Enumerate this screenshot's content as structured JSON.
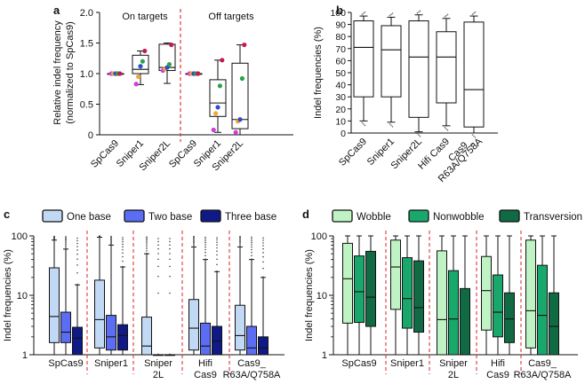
{
  "chart_data": [
    {
      "panel": "a",
      "type": "box",
      "ylabel": "Relative indel frequency",
      "ylabel2": "(normalized to SpCas9)",
      "ylim": [
        0,
        2.0
      ],
      "yticks": [
        "0",
        "0.5",
        "1.0",
        "1.5",
        "2.0"
      ],
      "group_labels": [
        "On targets",
        "Off targets"
      ],
      "categories": [
        "SpCas9",
        "Sniper1",
        "Sniper2L",
        "SpCas9",
        "Sniper1",
        "Sniper2L"
      ],
      "boxes": [
        {
          "min": 1.0,
          "q1": 1.0,
          "median": 1.0,
          "q3": 1.0,
          "max": 1.0
        },
        {
          "min": 0.82,
          "q1": 1.0,
          "median": 1.07,
          "q3": 1.3,
          "max": 1.37
        },
        {
          "min": 0.84,
          "q1": 1.05,
          "median": 1.1,
          "q3": 1.48,
          "max": 1.5
        },
        {
          "min": 1.0,
          "q1": 1.0,
          "median": 1.0,
          "q3": 1.0,
          "max": 1.0
        },
        {
          "min": 0.04,
          "q1": 0.3,
          "median": 0.52,
          "q3": 0.9,
          "max": 1.22
        },
        {
          "min": 0.0,
          "q1": 0.1,
          "median": 0.25,
          "q3": 1.17,
          "max": 1.47
        }
      ],
      "points": [
        [
          1.0,
          1.0,
          1.0,
          1.0,
          1.0
        ],
        [
          0.83,
          0.95,
          1.12,
          1.2,
          1.37
        ],
        [
          1.05,
          1.08,
          1.1,
          1.15,
          1.47
        ],
        [
          1.0,
          1.0,
          1.0,
          1.0,
          1.0
        ],
        [
          0.08,
          0.35,
          0.45,
          0.8,
          1.22
        ],
        [
          0.04,
          0.22,
          0.25,
          0.92,
          1.47
        ]
      ],
      "point_colors": [
        "#d13fd6",
        "#f6a53a",
        "#2b4ec9",
        "#2ca24a",
        "#c21b52"
      ]
    },
    {
      "panel": "b",
      "type": "box",
      "ylabel": "Indel frequencies (%)",
      "ylim": [
        0,
        100
      ],
      "yticks": [
        "0",
        "10",
        "20",
        "30",
        "40",
        "50",
        "60",
        "70",
        "80",
        "90",
        "100"
      ],
      "categories": [
        "SpCas9",
        "Sniper1",
        "Sniper2L",
        "Hifi Cas9",
        "Cas9_",
        "R63A/Q758A"
      ],
      "boxes": [
        {
          "min": 10,
          "q1": 30,
          "median": 71,
          "q3": 93,
          "max": 97
        },
        {
          "min": 9,
          "q1": 30,
          "median": 69,
          "q3": 89,
          "max": 96
        },
        {
          "min": 1,
          "q1": 13,
          "median": 63,
          "q3": 93,
          "max": 98
        },
        {
          "min": 6,
          "q1": 25,
          "median": 63,
          "q3": 84,
          "max": 95
        },
        {
          "min": 0,
          "q1": 5,
          "median": 36,
          "q3": 92,
          "max": 97
        }
      ]
    },
    {
      "panel": "c",
      "type": "box",
      "yscale": "log",
      "ylabel": "Indel frequencies (%)",
      "ylim": [
        1,
        100
      ],
      "yticks": [
        "1",
        "10",
        "100"
      ],
      "legend": [
        "One base",
        "Two base",
        "Three base"
      ],
      "colors": [
        "#c2d9f5",
        "#5b6df2",
        "#101a86"
      ],
      "categories": [
        "SpCas9",
        "Sniper1",
        "Sniper",
        "2L",
        "Hifi",
        "Cas9",
        "Cas9_",
        "R63A/Q758A"
      ],
      "boxes": [
        [
          {
            "min": 1,
            "q1": 1.6,
            "median": 4.4,
            "q3": 29,
            "max": 85
          },
          {
            "min": 1,
            "q1": 1.6,
            "median": 2.4,
            "q3": 5.2,
            "max": 60
          },
          {
            "min": 1,
            "q1": 1.0,
            "median": 1.9,
            "q3": 2.9,
            "max": 15
          }
        ],
        [
          {
            "min": 1,
            "q1": 1.3,
            "median": 3.9,
            "q3": 18,
            "max": 95
          },
          {
            "min": 1,
            "q1": 1.2,
            "median": 2.0,
            "q3": 4.6,
            "max": 70
          },
          {
            "min": 1,
            "q1": 1.2,
            "median": 2.1,
            "q3": 3.2,
            "max": 30
          }
        ],
        [
          {
            "min": 1,
            "q1": 1.0,
            "median": 1.4,
            "q3": 4.3,
            "max": 50
          },
          {
            "min": 1,
            "q1": 1.0,
            "median": 1.0,
            "q3": 1.0,
            "max": 1
          },
          {
            "min": 1,
            "q1": 1.0,
            "median": 1.0,
            "q3": 1.0,
            "max": 1
          }
        ],
        [
          {
            "min": 1,
            "q1": 1.2,
            "median": 2.8,
            "q3": 8.5,
            "max": 65
          },
          {
            "min": 1,
            "q1": 1.0,
            "median": 1.4,
            "q3": 3.4,
            "max": 40
          },
          {
            "min": 1,
            "q1": 1.0,
            "median": 1.7,
            "q3": 3.0,
            "max": 25
          }
        ],
        [
          {
            "min": 1,
            "q1": 1.2,
            "median": 2.1,
            "q3": 6.8,
            "max": 65
          },
          {
            "min": 1,
            "q1": 1.0,
            "median": 1.3,
            "q3": 3.0,
            "max": 40
          },
          {
            "min": 1,
            "q1": 1.0,
            "median": 1.3,
            "q3": 2.0,
            "max": 20
          }
        ]
      ]
    },
    {
      "panel": "d",
      "type": "box",
      "yscale": "log",
      "ylabel": "Indel frequencies (%)",
      "ylim": [
        1,
        100
      ],
      "yticks": [
        "1",
        "10",
        "100"
      ],
      "legend": [
        "Wobble",
        "Nonwobble",
        "Transversion"
      ],
      "colors": [
        "#bff3c4",
        "#18a86b",
        "#106b44"
      ],
      "categories": [
        "SpCas9",
        "Sniper1",
        "Sniper",
        "2L",
        "Hifi",
        "Cas9",
        "Cas9_",
        "R63A/Q758A"
      ],
      "boxes": [
        [
          {
            "min": 1,
            "q1": 3.4,
            "median": 19,
            "q3": 75,
            "max": 100
          },
          {
            "min": 1,
            "q1": 3.5,
            "median": 11.5,
            "q3": 46,
            "max": 100
          },
          {
            "min": 1,
            "q1": 3.0,
            "median": 9.3,
            "q3": 55,
            "max": 100
          }
        ],
        [
          {
            "min": 1,
            "q1": 5.8,
            "median": 30,
            "q3": 85,
            "max": 100
          },
          {
            "min": 1,
            "q1": 2.8,
            "median": 8.8,
            "q3": 43,
            "max": 100
          },
          {
            "min": 1,
            "q1": 2.4,
            "median": 6.2,
            "q3": 38,
            "max": 100
          }
        ],
        [
          {
            "min": 1,
            "q1": 1.0,
            "median": 3.9,
            "q3": 56,
            "max": 100
          },
          {
            "min": 1,
            "q1": 1.0,
            "median": 4.0,
            "q3": 26,
            "max": 100
          },
          {
            "min": 1,
            "q1": 1.0,
            "median": 1.0,
            "q3": 13,
            "max": 100
          }
        ],
        [
          {
            "min": 1,
            "q1": 2.6,
            "median": 12,
            "q3": 45,
            "max": 100
          },
          {
            "min": 1,
            "q1": 2.0,
            "median": 5.2,
            "q3": 22,
            "max": 100
          },
          {
            "min": 1,
            "q1": 1.6,
            "median": 4.0,
            "q3": 11,
            "max": 100
          }
        ],
        [
          {
            "min": 1,
            "q1": 1.3,
            "median": 5.5,
            "q3": 85,
            "max": 100
          },
          {
            "min": 1,
            "q1": 1.0,
            "median": 4.6,
            "q3": 32,
            "max": 100
          },
          {
            "min": 1,
            "q1": 1.0,
            "median": 3.0,
            "q3": 11,
            "max": 100
          }
        ]
      ]
    }
  ],
  "panel_letters": [
    "a",
    "b",
    "c",
    "d"
  ]
}
